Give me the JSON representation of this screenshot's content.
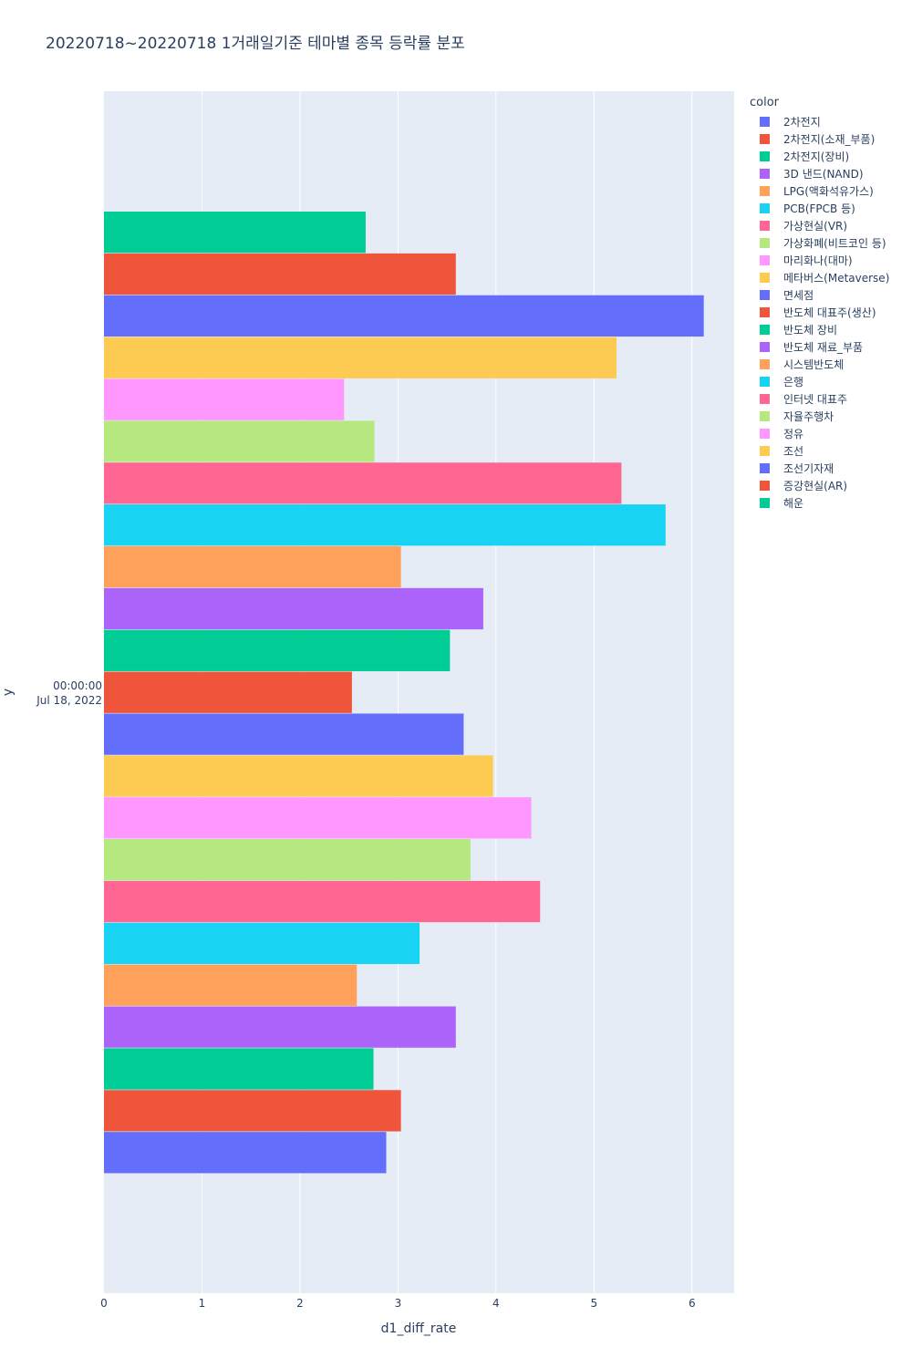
{
  "chart_data": {
    "type": "bar",
    "orientation": "horizontal",
    "barmode": "group",
    "title": "20220718~20220718 1거래일기준 테마별 종목 등락률 분포",
    "xlabel": "d1_diff_rate",
    "ylabel": "y",
    "xlim": [
      0,
      6.43
    ],
    "xticks": [
      "0",
      "1",
      "2",
      "3",
      "4",
      "5",
      "6"
    ],
    "ytick_label": [
      "00:00:00",
      "Jul 18, 2022"
    ],
    "legend_title": "color",
    "legend_position": "top-right",
    "categories": [
      "2022-07-18 00:00:00"
    ],
    "series": [
      {
        "name": "2차전지",
        "color": "#636efa",
        "values": [
          2.88
        ]
      },
      {
        "name": "2차전지(소재_부품)",
        "color": "#EF553B",
        "values": [
          3.03
        ]
      },
      {
        "name": "2차전지(장비)",
        "color": "#00cc96",
        "values": [
          2.75
        ]
      },
      {
        "name": "3D 낸드(NAND)",
        "color": "#ab63fa",
        "values": [
          3.59
        ]
      },
      {
        "name": "LPG(액화석유가스)",
        "color": "#FFA15A",
        "values": [
          2.58
        ]
      },
      {
        "name": "PCB(FPCB 등)",
        "color": "#19d3f3",
        "values": [
          3.22
        ]
      },
      {
        "name": "가상현실(VR)",
        "color": "#FF6692",
        "values": [
          4.45
        ]
      },
      {
        "name": "가상화폐(비트코인 등)",
        "color": "#B6E880",
        "values": [
          3.74
        ]
      },
      {
        "name": "마리화나(대마)",
        "color": "#FF97FF",
        "values": [
          4.36
        ]
      },
      {
        "name": "메타버스(Metaverse)",
        "color": "#FECB52",
        "values": [
          3.97
        ]
      },
      {
        "name": "면세점",
        "color": "#636efa",
        "values": [
          3.67
        ]
      },
      {
        "name": "반도체 대표주(생산)",
        "color": "#EF553B",
        "values": [
          2.53
        ]
      },
      {
        "name": "반도체 장비",
        "color": "#00cc96",
        "values": [
          3.53
        ]
      },
      {
        "name": "반도체 재료_부품",
        "color": "#ab63fa",
        "values": [
          3.87
        ]
      },
      {
        "name": "시스템반도체",
        "color": "#FFA15A",
        "values": [
          3.03
        ]
      },
      {
        "name": "은행",
        "color": "#19d3f3",
        "values": [
          5.73
        ]
      },
      {
        "name": "인터넷 대표주",
        "color": "#FF6692",
        "values": [
          5.28
        ]
      },
      {
        "name": "자율주행차",
        "color": "#B6E880",
        "values": [
          2.76
        ]
      },
      {
        "name": "정유",
        "color": "#FF97FF",
        "values": [
          2.45
        ]
      },
      {
        "name": "조선",
        "color": "#FECB52",
        "values": [
          5.23
        ]
      },
      {
        "name": "조선기자재",
        "color": "#636efa",
        "values": [
          6.12
        ]
      },
      {
        "name": "증강현실(AR)",
        "color": "#EF553B",
        "values": [
          3.59
        ]
      },
      {
        "name": "해운",
        "color": "#00cc96",
        "values": [
          2.67
        ]
      }
    ]
  }
}
